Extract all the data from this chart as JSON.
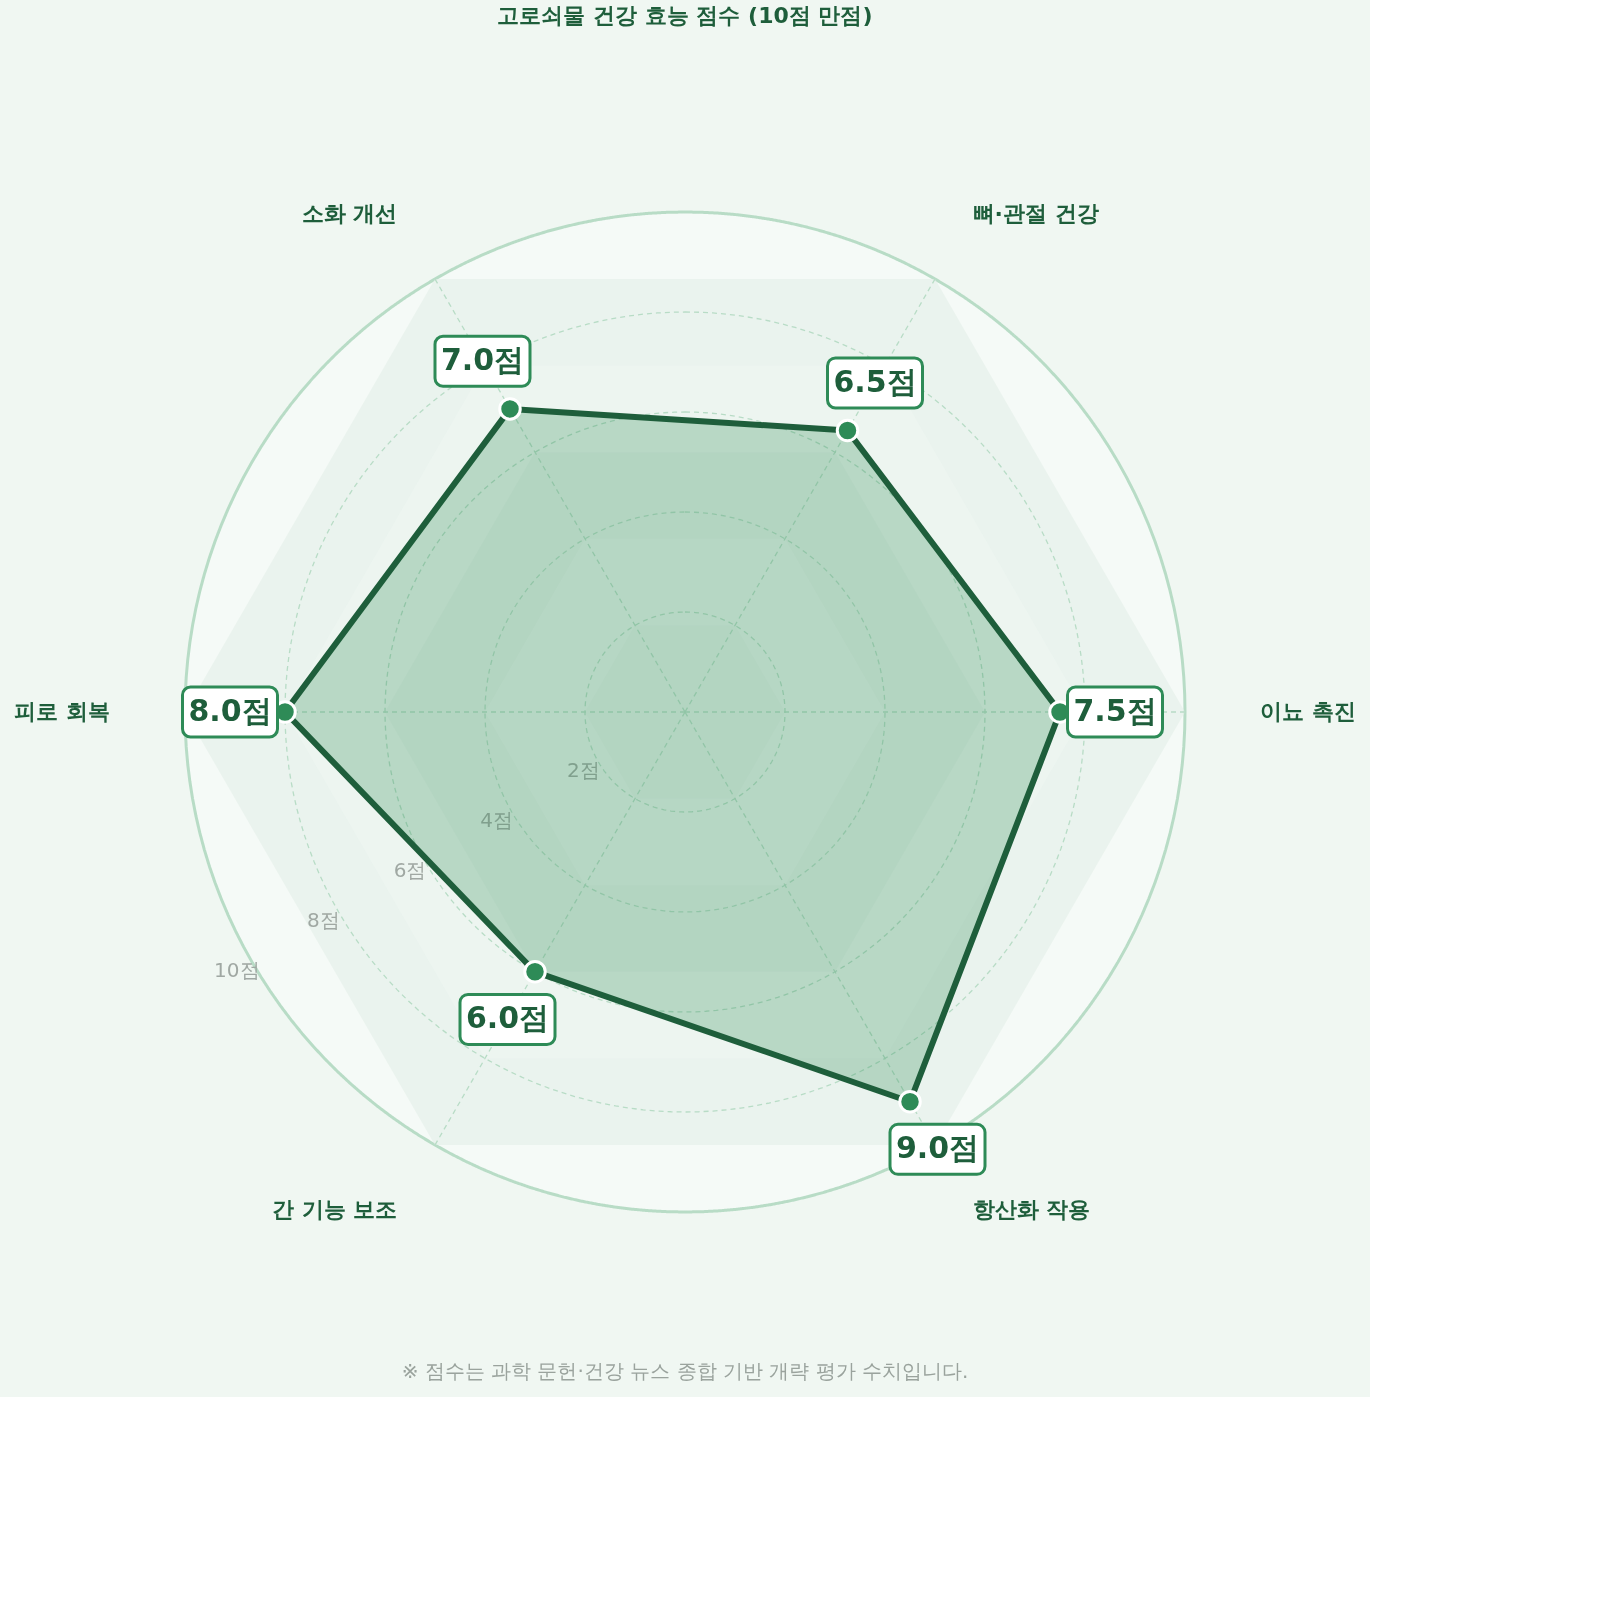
{
  "chart_data": {
    "type": "radar",
    "title": "고로쇠물 건강 효능 점수 (10점 만점)",
    "categories": [
      "뼈·관절 건강",
      "이뇨 촉진",
      "항산화 작용",
      "간 기능 보조",
      "피로 회복",
      "소화 개선"
    ],
    "series": [
      {
        "color": "#1e5e3b",
        "values": [
          6.5,
          7.5,
          9.0,
          6.0,
          8.0,
          7.0
        ]
      }
    ],
    "value_labels": [
      "6.5점",
      "7.5점",
      "9.0점",
      "6.0점",
      "8.0점",
      "7.0점"
    ],
    "ylim": [
      0,
      10
    ],
    "yticks": [
      {
        "value": 2,
        "label": "2점"
      },
      {
        "value": 4,
        "label": "4점"
      },
      {
        "value": 6,
        "label": "6점"
      },
      {
        "value": 8,
        "label": "8점"
      },
      {
        "value": 10,
        "label": "10점"
      }
    ],
    "grid": true,
    "marker": "circle",
    "annotations": [
      "※ 점수는 과학 문헌·건강 뉴스 종합 기반 개략 평가 수치입니다."
    ]
  }
}
